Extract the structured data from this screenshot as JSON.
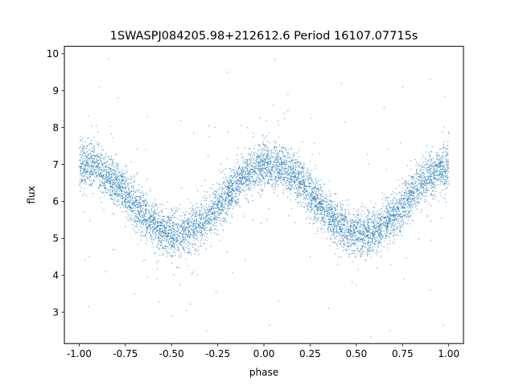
{
  "chart_data": {
    "type": "scatter",
    "title": "1SWASPJ084205.98+212612.6 Period 16107.07715s",
    "xlabel": "phase",
    "ylabel": "flux",
    "xlim": [
      -1.08,
      1.08
    ],
    "ylim": [
      2.15,
      10.2
    ],
    "xticks": [
      "-1.00",
      "-0.75",
      "-0.50",
      "-0.25",
      "0.00",
      "0.25",
      "0.50",
      "0.75",
      "1.00"
    ],
    "yticks": [
      "3",
      "4",
      "5",
      "6",
      "7",
      "8",
      "9",
      "10"
    ],
    "grid": false,
    "legend": "none",
    "marker_color": "#1f77b4",
    "series": [
      {
        "model": "sinusoid",
        "mean": 6.05,
        "amplitude": 0.95,
        "peak_phase": 0.03,
        "cycles_per_unit_phase": 1,
        "scatter_sd": 0.3,
        "x_range": [
          -1.0,
          1.0
        ],
        "points": [
          [
            -1.0,
            7.05
          ],
          [
            -0.95,
            7.25
          ],
          [
            -0.9,
            7.05
          ],
          [
            -0.85,
            6.95
          ],
          [
            -0.8,
            6.75
          ],
          [
            -0.75,
            6.45
          ],
          [
            -0.7,
            6.1
          ],
          [
            -0.65,
            5.75
          ],
          [
            -0.6,
            5.45
          ],
          [
            -0.55,
            5.2
          ],
          [
            -0.5,
            5.1
          ],
          [
            -0.45,
            5.1
          ],
          [
            -0.4,
            5.15
          ],
          [
            -0.35,
            5.4
          ],
          [
            -0.3,
            5.75
          ],
          [
            -0.25,
            6.1
          ],
          [
            -0.2,
            6.45
          ],
          [
            -0.15,
            6.75
          ],
          [
            -0.1,
            6.9
          ],
          [
            -0.05,
            7.0
          ],
          [
            0.0,
            7.05
          ],
          [
            0.05,
            7.05
          ],
          [
            0.1,
            6.95
          ],
          [
            0.15,
            6.75
          ],
          [
            0.2,
            6.5
          ],
          [
            0.25,
            6.2
          ],
          [
            0.3,
            5.85
          ],
          [
            0.35,
            5.55
          ],
          [
            0.4,
            5.3
          ],
          [
            0.45,
            5.15
          ],
          [
            0.5,
            5.1
          ],
          [
            0.55,
            5.1
          ],
          [
            0.6,
            5.25
          ],
          [
            0.65,
            5.5
          ],
          [
            0.7,
            5.85
          ],
          [
            0.75,
            6.2
          ],
          [
            0.8,
            6.55
          ],
          [
            0.85,
            6.75
          ],
          [
            0.9,
            6.95
          ],
          [
            0.95,
            7.0
          ],
          [
            1.0,
            7.05
          ]
        ],
        "outliers": [
          [
            -0.84,
            9.85
          ],
          [
            -0.89,
            9.1
          ],
          [
            -0.63,
            8.3
          ],
          [
            -0.45,
            8.2
          ],
          [
            -0.38,
            7.85
          ],
          [
            -0.2,
            9.5
          ],
          [
            0.06,
            9.85
          ],
          [
            0.05,
            8.6
          ],
          [
            0.13,
            8.9
          ],
          [
            0.42,
            9.2
          ],
          [
            0.44,
            8.15
          ],
          [
            0.75,
            9.1
          ],
          [
            0.65,
            8.55
          ],
          [
            0.9,
            9.3
          ],
          [
            0.98,
            8.85
          ],
          [
            -0.95,
            3.15
          ],
          [
            -0.97,
            4.4
          ],
          [
            -0.82,
            4.7
          ],
          [
            -0.7,
            3.5
          ],
          [
            -0.5,
            2.9
          ],
          [
            -0.31,
            2.5
          ],
          [
            0.03,
            2.65
          ],
          [
            0.08,
            3.3
          ],
          [
            0.35,
            3.1
          ],
          [
            0.68,
            2.5
          ],
          [
            0.76,
            3.9
          ],
          [
            0.9,
            3.6
          ],
          [
            0.97,
            2.65
          ],
          [
            -0.1,
            4.4
          ],
          [
            0.25,
            4.5
          ],
          [
            -0.58,
            3.9
          ],
          [
            0.5,
            3.75
          ]
        ]
      }
    ]
  }
}
